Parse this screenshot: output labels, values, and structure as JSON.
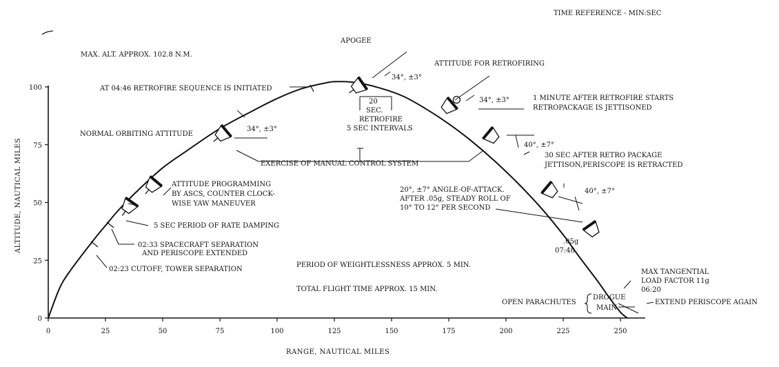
{
  "header": {
    "time_reference": "TIME REFERENCE - MIN:SEC",
    "max_altitude": "MAX. ALT. APPROX. 102.8 N.M."
  },
  "axes": {
    "x_title": "RANGE, NAUTICAL MILES",
    "y_title": "ALTITUDE, NAUTICAL MILES",
    "x_ticks": [
      "0",
      "25",
      "50",
      "75",
      "100",
      "125",
      "150",
      "175",
      "200",
      "225",
      "250"
    ],
    "y_ticks": [
      "0",
      "25",
      "50",
      "75",
      "100"
    ]
  },
  "annotations": {
    "apogee": "APOGEE",
    "retrofire_seq": "AT 04:46 RETROFIRE SEQUENCE IS INITIATED",
    "normal_orbit": "NORMAL ORBITING ATTITUDE",
    "angle_34a": "34°, ±3°",
    "angle_34b": "34°, ±3°",
    "angle_34c": "34°, ±3°",
    "sec_20": "20",
    "sec_label": "SEC.",
    "retrofire": "RETROFIRE",
    "retro_intervals": "5 SEC INTERVALS",
    "attitude_retro": "ATTITUDE FOR RETROFIRING",
    "jettison_1": "1 MINUTE AFTER RETROFIRE STARTS",
    "jettison_2": "RETROPACKAGE IS JETTISONED",
    "angle_40a": "40°, ±7°",
    "periscope_1": "30 SEC AFTER RETRO PACKAGE",
    "periscope_2": "JETTISON,PERISCOPE IS RETRACTED",
    "manual_control": "EXERCISE OF MANUAL CONTROL SYSTEM",
    "attitude_prog_1": "ATTITUDE PROGRAMMING",
    "attitude_prog_2": "BY ASCS, COUNTER CLOCK-",
    "attitude_prog_3": "WISE YAW MANEUVER",
    "aoa_1": "20°, ±7° ANGLE-OF-ATTACK.",
    "aoa_2": "AFTER .05g, STEADY ROLL OF",
    "aoa_3": "10° TO 12° PER SECOND",
    "angle_40b": "40°, ±7°",
    "rate_damping": "5 SEC PERIOD OF RATE DAMPING",
    "separation_1": "02:33 SPACECRAFT SEPARATION",
    "separation_2": "AND PERISCOPE EXTENDED",
    "g05": ".05g",
    "time_0748": "07:48",
    "weightless": "PERIOD OF WEIGHTLESSNESS APPROX. 5 MIN.",
    "cutoff": "02:23 CUTOFF, TOWER SEPARATION",
    "flight_time": "TOTAL FLIGHT TIME APPROX. 15 MIN.",
    "max_load_1": "MAX TANGENTIAL",
    "max_load_2": "LOAD FACTOR 11g",
    "time_0620": "06:20",
    "drogue": "DROGUE",
    "main": "MAIN",
    "open_parachutes": "OPEN PARACHUTES",
    "extend_periscope": "EXTEND PERISCOPE AGAIN"
  },
  "trajectory": {
    "range_nm": [
      0,
      5,
      10,
      20,
      25,
      31,
      40,
      50,
      60,
      75,
      90,
      100,
      110,
      120,
      126,
      135,
      145,
      155,
      165,
      175,
      185,
      195,
      205,
      215,
      225,
      232,
      240,
      245,
      250,
      253
    ],
    "altitude_nm": [
      0,
      13,
      21,
      34,
      40,
      47,
      56,
      65,
      72,
      82,
      90,
      95,
      99,
      101.5,
      102.3,
      101.8,
      99.5,
      96,
      90.5,
      84,
      76.5,
      68,
      58.5,
      48,
      36,
      26.5,
      16,
      9,
      2.5,
      0
    ]
  }
}
